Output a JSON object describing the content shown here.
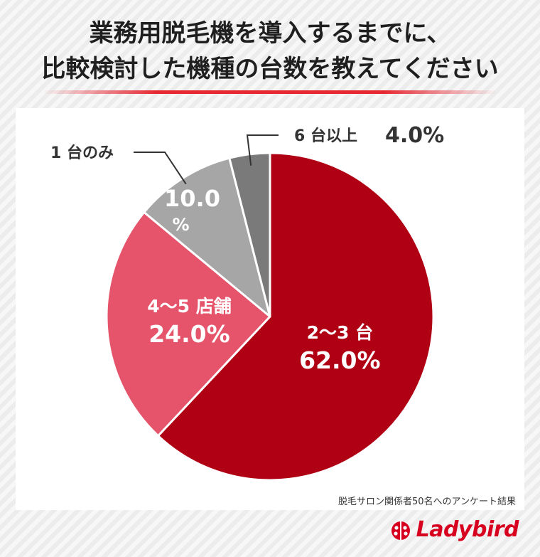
{
  "title_lines": [
    "業務用脱毛機を導入するまでに、",
    "比較検討した機種の台数を教えてください"
  ],
  "source_note": "脱毛サロン関係者50名へのアンケート結果",
  "brand": {
    "name": "Ladybird",
    "logo_icon": "ladybug-icon",
    "color": "#d7001e"
  },
  "chart_data": {
    "type": "pie",
    "title": "業務用脱毛機を導入するまでに、比較検討した機種の台数を教えてください",
    "start_angle_deg": 0,
    "direction": "clockwise",
    "slices": [
      {
        "label": "2〜3 台",
        "value": 62.0,
        "value_text": "62.0%",
        "color": "#b00014",
        "label_position": "inside"
      },
      {
        "label": "4〜5 店舗",
        "value": 24.0,
        "value_text": "24.0%",
        "color": "#e5546a",
        "label_position": "inside"
      },
      {
        "label": "1 台のみ",
        "value": 10.0,
        "value_text": "10.0%",
        "value_lines": [
          "10.0",
          "%"
        ],
        "color": "#a6a6a6",
        "label_position": "outside-left"
      },
      {
        "label": "6 台以上",
        "value": 4.0,
        "value_text": "4.0%",
        "color": "#7a7a7a",
        "label_position": "outside-top"
      }
    ]
  }
}
